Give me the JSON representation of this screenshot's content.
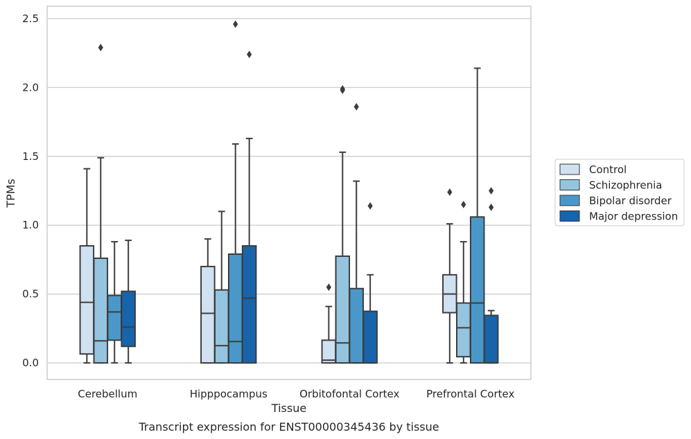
{
  "chart_data": {
    "type": "box",
    "title": "",
    "caption": "Transcript expression for ENST00000345436 by tissue",
    "xlabel": "Tissue",
    "ylabel": "TPMs",
    "ylim": [
      -0.12,
      2.59
    ],
    "yticks": [
      0.0,
      0.5,
      1.0,
      1.5,
      2.0,
      2.5
    ],
    "ytick_labels": [
      "0.0",
      "0.5",
      "1.0",
      "1.5",
      "2.0",
      "2.5"
    ],
    "grid": "horizontal",
    "legend_position": "right",
    "categories": [
      "Cerebellum",
      "Hipppocampus",
      "Orbitofontal Cortex",
      "Prefrontal Cortex"
    ],
    "series": [
      {
        "name": "Control",
        "color": "#d0e1f2",
        "boxes": [
          {
            "whisker_low": 0.0,
            "q1": 0.065,
            "median": 0.44,
            "q3": 0.85,
            "whisker_high": 1.41,
            "outliers": []
          },
          {
            "whisker_low": 0.0,
            "q1": 0.0,
            "median": 0.36,
            "q3": 0.7,
            "whisker_high": 0.9,
            "outliers": []
          },
          {
            "whisker_low": 0.0,
            "q1": 0.0,
            "median": 0.02,
            "q3": 0.165,
            "whisker_high": 0.41,
            "outliers": [
              0.55
            ]
          },
          {
            "whisker_low": 0.0,
            "q1": 0.365,
            "median": 0.5,
            "q3": 0.64,
            "whisker_high": 1.01,
            "outliers": [
              1.24
            ]
          }
        ]
      },
      {
        "name": "Schizophrenia",
        "color": "#94c4df",
        "boxes": [
          {
            "whisker_low": 0.0,
            "q1": 0.0,
            "median": 0.16,
            "q3": 0.76,
            "whisker_high": 1.49,
            "outliers": [
              2.29
            ]
          },
          {
            "whisker_low": 0.0,
            "q1": 0.0,
            "median": 0.125,
            "q3": 0.53,
            "whisker_high": 1.1,
            "outliers": []
          },
          {
            "whisker_low": 0.0,
            "q1": 0.0,
            "median": 0.145,
            "q3": 0.775,
            "whisker_high": 1.53,
            "outliers": [
              1.98,
              1.99
            ]
          },
          {
            "whisker_low": 0.0,
            "q1": 0.045,
            "median": 0.255,
            "q3": 0.435,
            "whisker_high": 0.88,
            "outliers": [
              1.15
            ]
          }
        ]
      },
      {
        "name": "Bipolar disorder",
        "color": "#4a98c9",
        "boxes": [
          {
            "whisker_low": 0.0,
            "q1": 0.165,
            "median": 0.37,
            "q3": 0.49,
            "whisker_high": 0.88,
            "outliers": []
          },
          {
            "whisker_low": 0.0,
            "q1": 0.0,
            "median": 0.155,
            "q3": 0.79,
            "whisker_high": 1.59,
            "outliers": [
              2.46
            ]
          },
          {
            "whisker_low": 0.0,
            "q1": 0.0,
            "median": 0.0,
            "q3": 0.54,
            "whisker_high": 1.32,
            "outliers": [
              1.86
            ]
          },
          {
            "whisker_low": 0.0,
            "q1": 0.0,
            "median": 0.435,
            "q3": 1.06,
            "whisker_high": 2.14,
            "outliers": []
          }
        ]
      },
      {
        "name": "Major depression",
        "color": "#1764ab",
        "boxes": [
          {
            "whisker_low": 0.0,
            "q1": 0.12,
            "median": 0.26,
            "q3": 0.52,
            "whisker_high": 0.89,
            "outliers": []
          },
          {
            "whisker_low": 0.0,
            "q1": 0.0,
            "median": 0.47,
            "q3": 0.85,
            "whisker_high": 1.63,
            "outliers": [
              2.24
            ]
          },
          {
            "whisker_low": 0.0,
            "q1": 0.0,
            "median": 0.0,
            "q3": 0.375,
            "whisker_high": 0.64,
            "outliers": [
              1.14
            ]
          },
          {
            "whisker_low": 0.0,
            "q1": 0.0,
            "median": 0.0,
            "q3": 0.345,
            "whisker_high": 0.38,
            "outliers": [
              1.13,
              1.25
            ]
          }
        ]
      }
    ]
  }
}
